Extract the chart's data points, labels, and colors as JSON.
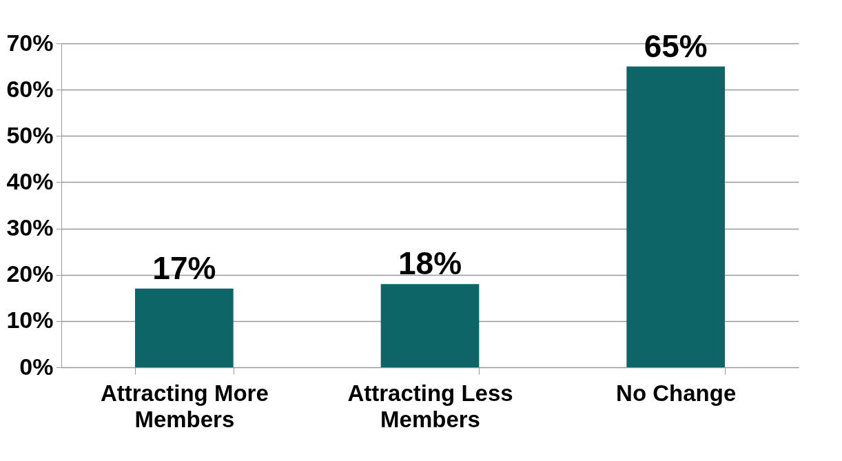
{
  "chart_data": {
    "type": "bar",
    "categories": [
      "Attracting More Members",
      "Attracting Less Members",
      "No Change"
    ],
    "values": [
      17,
      18,
      65
    ],
    "color": "#0e6567",
    "value_labels": [
      "17%",
      "18%",
      "65%"
    ],
    "ylim": [
      0,
      70
    ],
    "yticks": [
      {
        "value": 0,
        "label": "0%"
      },
      {
        "value": 10,
        "label": "10%"
      },
      {
        "value": 20,
        "label": "20%"
      },
      {
        "value": 30,
        "label": "30%"
      },
      {
        "value": 40,
        "label": "40%"
      },
      {
        "value": 50,
        "label": "50%"
      },
      {
        "value": 60,
        "label": "60%"
      },
      {
        "value": 70,
        "label": "70%"
      }
    ],
    "grid": "y"
  }
}
